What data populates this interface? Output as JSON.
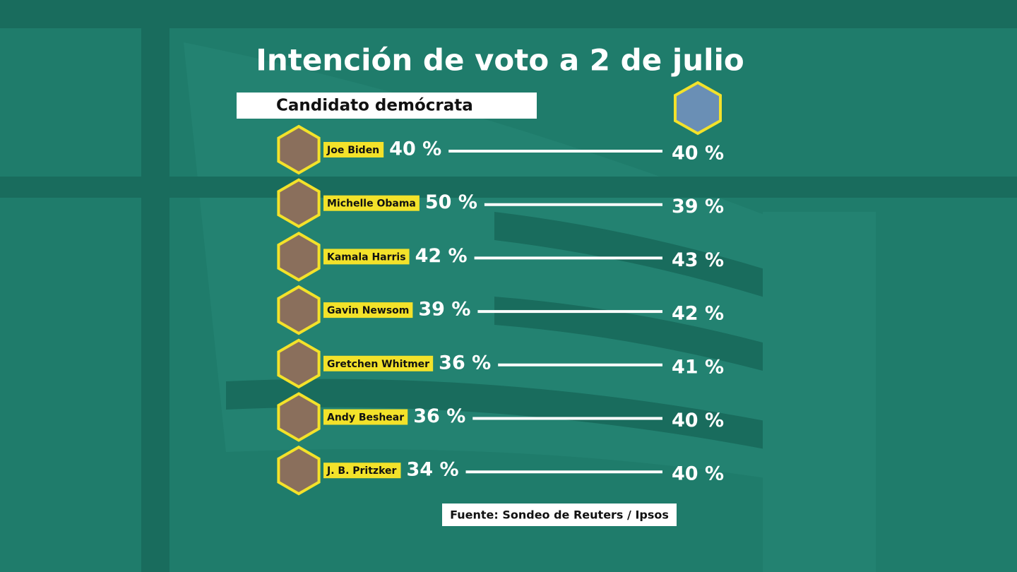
{
  "header": {
    "title": "Intención de voto a 2 de julio",
    "subtitle": "Candidato demócrata"
  },
  "rows": [
    {
      "name": "Joe Biden",
      "democrat": "40 %",
      "trump": "40 %"
    },
    {
      "name": "Michelle Obama",
      "democrat": "50 %",
      "trump": "39 %"
    },
    {
      "name": "Kamala Harris",
      "democrat": "42 %",
      "trump": "43 %"
    },
    {
      "name": "Gavin Newsom",
      "democrat": "39 %",
      "trump": "42 %"
    },
    {
      "name": "Gretchen Whitmer",
      "democrat": "36 %",
      "trump": "41 %"
    },
    {
      "name": "Andy Beshear",
      "democrat": "36 %",
      "trump": "40 %"
    },
    {
      "name": "J. B. Pritzker",
      "democrat": "34 %",
      "trump": "40 %"
    }
  ],
  "footer": {
    "source": "Fuente: Sondeo de Reuters / Ipsos"
  }
}
